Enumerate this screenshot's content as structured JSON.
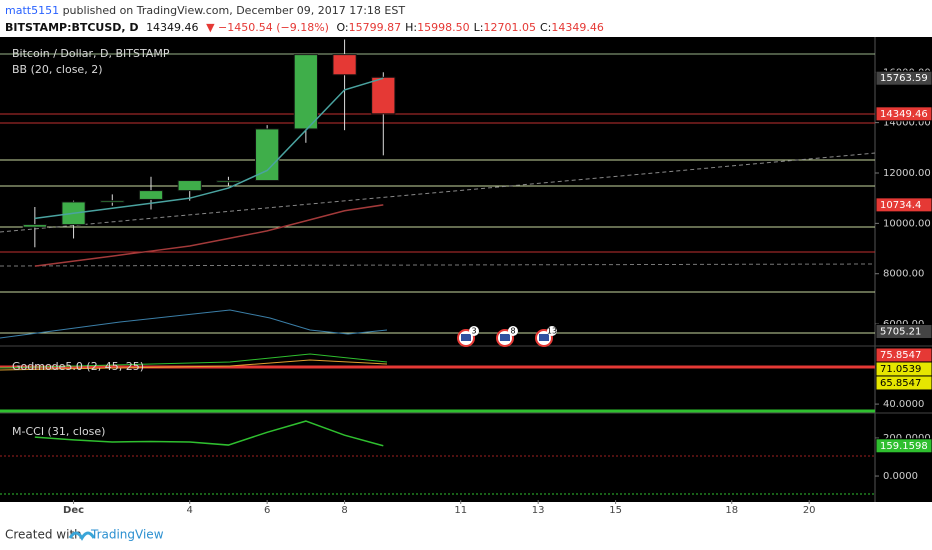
{
  "header": {
    "author": "matt5151",
    "published": "published on TradingView.com, December 09, 2017 17:18 EST",
    "symbol": "BITSTAMP:BTCUSD, D",
    "price": "14349.46",
    "change": "▼ −1450.54 (−9.18%)",
    "ohlc": [
      {
        "k": "O:",
        "v": "15799.87"
      },
      {
        "k": "H:",
        "v": "15998.50"
      },
      {
        "k": "L:",
        "v": "12701.05"
      },
      {
        "k": "C:",
        "v": "14349.46"
      }
    ]
  },
  "footer": {
    "created": "Created with",
    "brand": "TradingView"
  },
  "events": [
    "3",
    "8",
    "13"
  ],
  "chart_data": [
    {
      "type": "candlestick",
      "title": "Bitcoin / Dollar, D, BITSTAMP",
      "subtitle": "BB (20, close, 2)",
      "x": [
        0,
        1,
        2,
        3,
        4,
        5,
        6,
        7,
        8,
        9
      ],
      "open": [
        9850,
        9950,
        10850,
        10950,
        11300,
        11650,
        11700,
        13750,
        16700,
        15799.87
      ],
      "high": [
        10650,
        10900,
        11150,
        11850,
        11600,
        11850,
        13900,
        16700,
        17300,
        15998.5
      ],
      "low": [
        9050,
        9400,
        10700,
        10550,
        10900,
        11500,
        11700,
        13200,
        13700,
        12701.05
      ],
      "close": [
        9950,
        10850,
        10900,
        11300,
        11700,
        11700,
        13750,
        16700,
        15900,
        14349.46
      ],
      "up_color": "#3fae4a",
      "down_color": "#e53935",
      "series": [
        {
          "name": "BB basis",
          "color": "#4aa3a0",
          "values": [
            10200,
            10400,
            10600,
            10800,
            11000,
            11400,
            12100,
            13700,
            15300,
            15763.59
          ]
        },
        {
          "name": "BB lower",
          "color": "#a33a3a",
          "values": [
            8300,
            8500,
            8700,
            8900,
            9100,
            9400,
            9700,
            10100,
            10500,
            10734.4
          ]
        }
      ],
      "annotations": [
        15763.59,
        14349.46,
        10734.4,
        5705.21
      ],
      "annotation_colors": [
        "#444",
        "#e53935",
        "#e53935",
        "#444"
      ],
      "xlim": [
        -0.9,
        21.7
      ],
      "ylim": [
        5130,
        17400
      ],
      "xticks": [
        {
          "value": 1,
          "label": "Dec"
        },
        4,
        6,
        8,
        11,
        13,
        15,
        18,
        20
      ],
      "yticks": [
        {
          "value": 16000,
          "label": "16000.00"
        },
        {
          "value": 14000,
          "label": "14000.00"
        },
        {
          "value": 12000,
          "label": "12000.00"
        },
        {
          "value": 10000,
          "label": "10000.00"
        },
        {
          "value": 8000,
          "label": "8000.00"
        },
        {
          "value": 6000,
          "label": "6000.00"
        }
      ]
    },
    {
      "type": "indicator",
      "title": "Godmode5.0 (2, 45, 25)",
      "annotations": [
        75.8547,
        71.0539,
        65.8547
      ],
      "annotation_colors": [
        "#e53935",
        "#e6e600",
        "#e6e600"
      ],
      "ylim": [
        33.5,
        82.4
      ],
      "yticks": [
        {
          "value": 40,
          "label": "40.0000"
        }
      ]
    },
    {
      "type": "line",
      "title": "M-CCI (31, close)",
      "x": [
        0,
        1,
        2,
        3,
        4,
        5,
        6,
        7,
        8,
        9
      ],
      "series": [
        {
          "name": "M-CCI",
          "color": "#2fbf2f",
          "values": [
            205,
            190,
            179,
            182,
            179,
            163,
            230,
            289,
            215,
            159.1598
          ]
        }
      ],
      "annotations": [
        159.1598
      ],
      "annotation_colors": [
        "#2fbf2f"
      ],
      "ylim": [
        -126,
        331.6
      ],
      "yticks": [
        {
          "value": 200,
          "label": "200.0000"
        },
        {
          "value": 0,
          "label": "0.0000"
        }
      ]
    }
  ]
}
